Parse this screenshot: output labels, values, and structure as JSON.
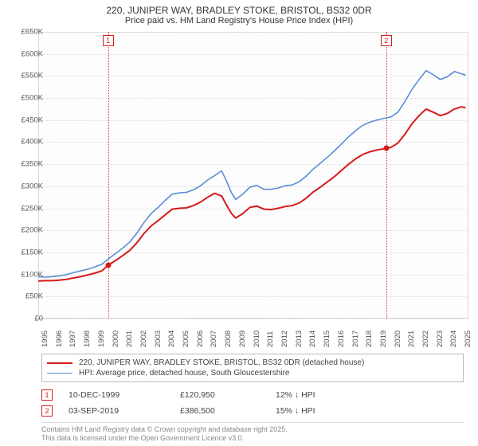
{
  "title_line1": "220, JUNIPER WAY, BRADLEY STOKE, BRISTOL, BS32 0DR",
  "title_line2": "Price paid vs. HM Land Registry's House Price Index (HPI)",
  "chart": {
    "type": "line",
    "background_color": "#fdfdfd",
    "grid_color": "#e0e0e0",
    "border_color": "#d8d8d8",
    "x_range": [
      1995,
      2025.5
    ],
    "y_range": [
      0,
      650000
    ],
    "y_ticks": [
      0,
      50000,
      100000,
      150000,
      200000,
      250000,
      300000,
      350000,
      400000,
      450000,
      500000,
      550000,
      600000,
      650000
    ],
    "y_tick_labels": [
      "£0",
      "£50K",
      "£100K",
      "£150K",
      "£200K",
      "£250K",
      "£300K",
      "£350K",
      "£400K",
      "£450K",
      "£500K",
      "£550K",
      "£600K",
      "£650K"
    ],
    "x_ticks": [
      1995,
      1996,
      1997,
      1998,
      1999,
      2000,
      2001,
      2002,
      2003,
      2004,
      2005,
      2006,
      2007,
      2008,
      2009,
      2010,
      2011,
      2012,
      2013,
      2014,
      2015,
      2016,
      2017,
      2018,
      2019,
      2020,
      2021,
      2022,
      2023,
      2024,
      2025
    ],
    "series": [
      {
        "id": "property",
        "color": "#d61a1a",
        "width": 2,
        "label": "220, JUNIPER WAY, BRADLEY STOKE, BRISTOL, BS32 0DR (detached house)",
        "points": [
          [
            1995.0,
            85000
          ],
          [
            1995.5,
            86000
          ],
          [
            1996.0,
            86000
          ],
          [
            1996.5,
            87000
          ],
          [
            1997.0,
            89000
          ],
          [
            1997.5,
            92000
          ],
          [
            1998.0,
            95000
          ],
          [
            1998.5,
            99000
          ],
          [
            1999.0,
            103000
          ],
          [
            1999.5,
            108000
          ],
          [
            1999.95,
            120950
          ],
          [
            2000.5,
            132000
          ],
          [
            2001.0,
            143000
          ],
          [
            2001.5,
            155000
          ],
          [
            2002.0,
            172000
          ],
          [
            2002.5,
            193000
          ],
          [
            2003.0,
            210000
          ],
          [
            2003.5,
            222000
          ],
          [
            2004.0,
            235000
          ],
          [
            2004.5,
            248000
          ],
          [
            2005.0,
            250000
          ],
          [
            2005.5,
            251000
          ],
          [
            2006.0,
            256000
          ],
          [
            2006.5,
            264000
          ],
          [
            2007.0,
            275000
          ],
          [
            2007.5,
            284000
          ],
          [
            2008.0,
            278000
          ],
          [
            2008.3,
            260000
          ],
          [
            2008.7,
            238000
          ],
          [
            2009.0,
            228000
          ],
          [
            2009.5,
            238000
          ],
          [
            2010.0,
            252000
          ],
          [
            2010.5,
            255000
          ],
          [
            2011.0,
            248000
          ],
          [
            2011.5,
            247000
          ],
          [
            2012.0,
            250000
          ],
          [
            2012.5,
            254000
          ],
          [
            2013.0,
            256000
          ],
          [
            2013.5,
            262000
          ],
          [
            2014.0,
            273000
          ],
          [
            2014.5,
            287000
          ],
          [
            2015.0,
            298000
          ],
          [
            2015.5,
            310000
          ],
          [
            2016.0,
            322000
          ],
          [
            2016.5,
            336000
          ],
          [
            2017.0,
            350000
          ],
          [
            2017.5,
            362000
          ],
          [
            2018.0,
            372000
          ],
          [
            2018.5,
            378000
          ],
          [
            2019.0,
            382000
          ],
          [
            2019.5,
            385000
          ],
          [
            2019.67,
            386500
          ],
          [
            2020.0,
            388000
          ],
          [
            2020.5,
            398000
          ],
          [
            2021.0,
            418000
          ],
          [
            2021.5,
            442000
          ],
          [
            2022.0,
            460000
          ],
          [
            2022.5,
            475000
          ],
          [
            2023.0,
            468000
          ],
          [
            2023.5,
            460000
          ],
          [
            2024.0,
            465000
          ],
          [
            2024.5,
            475000
          ],
          [
            2025.0,
            480000
          ],
          [
            2025.3,
            478000
          ]
        ]
      },
      {
        "id": "hpi",
        "color": "#5b8dd6",
        "width": 1.6,
        "label": "HPI: Average price, detached house, South Gloucestershire",
        "points": [
          [
            1995.0,
            95000
          ],
          [
            1995.5,
            94000
          ],
          [
            1996.0,
            95000
          ],
          [
            1996.5,
            97000
          ],
          [
            1997.0,
            100000
          ],
          [
            1997.5,
            104000
          ],
          [
            1998.0,
            108000
          ],
          [
            1998.5,
            112000
          ],
          [
            1999.0,
            117000
          ],
          [
            1999.5,
            123000
          ],
          [
            2000.0,
            136000
          ],
          [
            2000.5,
            148000
          ],
          [
            2001.0,
            160000
          ],
          [
            2001.5,
            174000
          ],
          [
            2002.0,
            194000
          ],
          [
            2002.5,
            218000
          ],
          [
            2003.0,
            238000
          ],
          [
            2003.5,
            252000
          ],
          [
            2004.0,
            268000
          ],
          [
            2004.5,
            282000
          ],
          [
            2005.0,
            285000
          ],
          [
            2005.5,
            286000
          ],
          [
            2006.0,
            292000
          ],
          [
            2006.5,
            301000
          ],
          [
            2007.0,
            314000
          ],
          [
            2007.5,
            324000
          ],
          [
            2008.0,
            335000
          ],
          [
            2008.3,
            315000
          ],
          [
            2008.7,
            285000
          ],
          [
            2009.0,
            270000
          ],
          [
            2009.5,
            282000
          ],
          [
            2010.0,
            298000
          ],
          [
            2010.5,
            302000
          ],
          [
            2011.0,
            293000
          ],
          [
            2011.5,
            293000
          ],
          [
            2012.0,
            296000
          ],
          [
            2012.5,
            301000
          ],
          [
            2013.0,
            303000
          ],
          [
            2013.5,
            310000
          ],
          [
            2014.0,
            323000
          ],
          [
            2014.5,
            339000
          ],
          [
            2015.0,
            352000
          ],
          [
            2015.5,
            366000
          ],
          [
            2016.0,
            380000
          ],
          [
            2016.5,
            396000
          ],
          [
            2017.0,
            412000
          ],
          [
            2017.5,
            426000
          ],
          [
            2018.0,
            438000
          ],
          [
            2018.5,
            445000
          ],
          [
            2019.0,
            450000
          ],
          [
            2019.5,
            454000
          ],
          [
            2020.0,
            457000
          ],
          [
            2020.5,
            468000
          ],
          [
            2021.0,
            492000
          ],
          [
            2021.5,
            520000
          ],
          [
            2022.0,
            542000
          ],
          [
            2022.5,
            562000
          ],
          [
            2023.0,
            553000
          ],
          [
            2023.5,
            542000
          ],
          [
            2024.0,
            548000
          ],
          [
            2024.5,
            560000
          ],
          [
            2025.0,
            555000
          ],
          [
            2025.3,
            552000
          ]
        ]
      }
    ],
    "markers": [
      {
        "num": "1",
        "x": 1999.95,
        "y": 120950,
        "dot_color": "#d61a1a"
      },
      {
        "num": "2",
        "x": 2019.67,
        "y": 386500,
        "dot_color": "#d61a1a"
      }
    ],
    "marker_line_color": "#d04040",
    "marker_box_border": "#d02020"
  },
  "legend": {
    "property_label": "220, JUNIPER WAY, BRADLEY STOKE, BRISTOL, BS32 0DR (detached house)",
    "hpi_label": "HPI: Average price, detached house, South Gloucestershire"
  },
  "sales": [
    {
      "num": "1",
      "date": "10-DEC-1999",
      "price": "£120,950",
      "rel": "12% ↓ HPI"
    },
    {
      "num": "2",
      "date": "03-SEP-2019",
      "price": "£386,500",
      "rel": "15% ↓ HPI"
    }
  ],
  "footer_line1": "Contains HM Land Registry data © Crown copyright and database right 2025.",
  "footer_line2": "This data is licensed under the Open Government Licence v3.0."
}
